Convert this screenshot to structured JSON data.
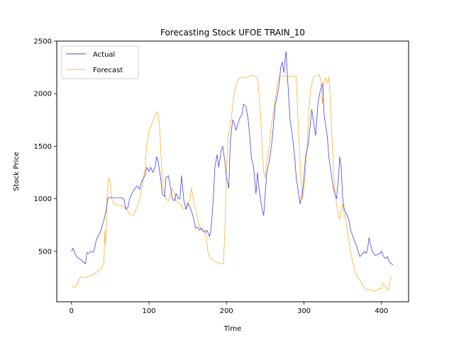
{
  "chart_data": {
    "type": "line",
    "title": "Forecasting Stock UFOE TRAIN_10",
    "xlabel": "Time",
    "ylabel": "Stock Price",
    "xlim": [
      -19,
      435
    ],
    "ylim": [
      20,
      2500
    ],
    "xticks": [
      0,
      100,
      200,
      300,
      400
    ],
    "yticks": [
      500,
      1000,
      1500,
      2000,
      2500
    ],
    "grid": false,
    "legend_position": "top-left",
    "series": [
      {
        "name": "Actual",
        "color": "#4444dd",
        "points": [
          [
            0,
            500
          ],
          [
            2,
            530
          ],
          [
            5,
            470
          ],
          [
            8,
            440
          ],
          [
            12,
            420
          ],
          [
            15,
            400
          ],
          [
            18,
            380
          ],
          [
            20,
            490
          ],
          [
            22,
            480
          ],
          [
            25,
            500
          ],
          [
            28,
            490
          ],
          [
            30,
            530
          ],
          [
            32,
            610
          ],
          [
            35,
            650
          ],
          [
            38,
            700
          ],
          [
            40,
            750
          ],
          [
            42,
            800
          ],
          [
            45,
            900
          ],
          [
            47,
            1010
          ],
          [
            50,
            1010
          ],
          [
            55,
            1010
          ],
          [
            60,
            1010
          ],
          [
            65,
            1010
          ],
          [
            68,
            990
          ],
          [
            70,
            900
          ],
          [
            73,
            920
          ],
          [
            75,
            1000
          ],
          [
            78,
            1050
          ],
          [
            82,
            1100
          ],
          [
            85,
            1120
          ],
          [
            88,
            1090
          ],
          [
            90,
            1150
          ],
          [
            93,
            1200
          ],
          [
            95,
            1220
          ],
          [
            97,
            1300
          ],
          [
            100,
            1260
          ],
          [
            102,
            1300
          ],
          [
            105,
            1250
          ],
          [
            108,
            1300
          ],
          [
            110,
            1400
          ],
          [
            112,
            1350
          ],
          [
            115,
            1200
          ],
          [
            117,
            1050
          ],
          [
            120,
            1020
          ],
          [
            122,
            1200
          ],
          [
            125,
            1220
          ],
          [
            128,
            1100
          ],
          [
            130,
            1000
          ],
          [
            133,
            980
          ],
          [
            135,
            1050
          ],
          [
            138,
            1000
          ],
          [
            140,
            1000
          ],
          [
            142,
            1220
          ],
          [
            145,
            980
          ],
          [
            148,
            900
          ],
          [
            150,
            960
          ],
          [
            153,
            920
          ],
          [
            155,
            880
          ],
          [
            158,
            800
          ],
          [
            160,
            720
          ],
          [
            163,
            730
          ],
          [
            165,
            700
          ],
          [
            168,
            720
          ],
          [
            170,
            690
          ],
          [
            172,
            680
          ],
          [
            175,
            700
          ],
          [
            178,
            640
          ],
          [
            180,
            700
          ],
          [
            183,
            1000
          ],
          [
            185,
            1300
          ],
          [
            188,
            1420
          ],
          [
            190,
            1300
          ],
          [
            193,
            1450
          ],
          [
            195,
            1500
          ],
          [
            198,
            1350
          ],
          [
            200,
            1200
          ],
          [
            203,
            1100
          ],
          [
            205,
            1550
          ],
          [
            208,
            1750
          ],
          [
            210,
            1720
          ],
          [
            212,
            1650
          ],
          [
            215,
            1720
          ],
          [
            218,
            1780
          ],
          [
            220,
            1800
          ],
          [
            222,
            1900
          ],
          [
            225,
            1880
          ],
          [
            228,
            1750
          ],
          [
            230,
            1600
          ],
          [
            232,
            1400
          ],
          [
            235,
            1300
          ],
          [
            238,
            1050
          ],
          [
            240,
            1250
          ],
          [
            242,
            1100
          ],
          [
            244,
            1000
          ],
          [
            246,
            900
          ],
          [
            248,
            840
          ],
          [
            250,
            1050
          ],
          [
            252,
            1250
          ],
          [
            255,
            1350
          ],
          [
            258,
            1500
          ],
          [
            260,
            1650
          ],
          [
            263,
            1900
          ],
          [
            266,
            2000
          ],
          [
            268,
            2100
          ],
          [
            270,
            2250
          ],
          [
            272,
            2300
          ],
          [
            274,
            2200
          ],
          [
            276,
            2350
          ],
          [
            277,
            2400
          ],
          [
            278,
            2250
          ],
          [
            280,
            2000
          ],
          [
            282,
            1750
          ],
          [
            285,
            1600
          ],
          [
            288,
            1400
          ],
          [
            290,
            1200
          ],
          [
            293,
            1050
          ],
          [
            295,
            950
          ],
          [
            298,
            1050
          ],
          [
            300,
            1200
          ],
          [
            302,
            1400
          ],
          [
            305,
            1500
          ],
          [
            308,
            1700
          ],
          [
            310,
            1850
          ],
          [
            312,
            1750
          ],
          [
            315,
            1600
          ],
          [
            318,
            1900
          ],
          [
            320,
            2000
          ],
          [
            322,
            2050
          ],
          [
            324,
            2100
          ],
          [
            326,
            1800
          ],
          [
            328,
            1700
          ],
          [
            330,
            1600
          ],
          [
            332,
            1400
          ],
          [
            335,
            1250
          ],
          [
            338,
            1100
          ],
          [
            340,
            1050
          ],
          [
            342,
            1000
          ],
          [
            345,
            1250
          ],
          [
            346,
            1400
          ],
          [
            348,
            1300
          ],
          [
            350,
            1000
          ],
          [
            352,
            900
          ],
          [
            355,
            850
          ],
          [
            358,
            800
          ],
          [
            360,
            700
          ],
          [
            363,
            650
          ],
          [
            365,
            600
          ],
          [
            368,
            550
          ],
          [
            370,
            500
          ],
          [
            372,
            450
          ],
          [
            375,
            470
          ],
          [
            378,
            500
          ],
          [
            380,
            480
          ],
          [
            382,
            520
          ],
          [
            384,
            630
          ],
          [
            386,
            560
          ],
          [
            388,
            500
          ],
          [
            390,
            480
          ],
          [
            392,
            460
          ],
          [
            395,
            470
          ],
          [
            398,
            480
          ],
          [
            400,
            500
          ],
          [
            402,
            460
          ],
          [
            405,
            430
          ],
          [
            408,
            450
          ],
          [
            410,
            400
          ],
          [
            413,
            380
          ],
          [
            415,
            370
          ]
        ]
      },
      {
        "name": "Forecast",
        "color": "#ffb030",
        "points": [
          [
            0,
            170
          ],
          [
            3,
            160
          ],
          [
            6,
            165
          ],
          [
            8,
            200
          ],
          [
            10,
            240
          ],
          [
            12,
            260
          ],
          [
            15,
            250
          ],
          [
            18,
            250
          ],
          [
            22,
            260
          ],
          [
            28,
            280
          ],
          [
            32,
            300
          ],
          [
            36,
            320
          ],
          [
            40,
            360
          ],
          [
            42,
            400
          ],
          [
            43,
            700
          ],
          [
            44,
            560
          ],
          [
            45,
            750
          ],
          [
            46,
            1050
          ],
          [
            48,
            1200
          ],
          [
            50,
            1150
          ],
          [
            52,
            1000
          ],
          [
            55,
            950
          ],
          [
            60,
            940
          ],
          [
            65,
            930
          ],
          [
            70,
            920
          ],
          [
            75,
            850
          ],
          [
            80,
            840
          ],
          [
            85,
            930
          ],
          [
            88,
            1000
          ],
          [
            92,
            1150
          ],
          [
            95,
            1300
          ],
          [
            97,
            1500
          ],
          [
            100,
            1650
          ],
          [
            103,
            1700
          ],
          [
            106,
            1760
          ],
          [
            108,
            1800
          ],
          [
            110,
            1830
          ],
          [
            112,
            1800
          ],
          [
            114,
            1650
          ],
          [
            116,
            1350
          ],
          [
            118,
            1100
          ],
          [
            120,
            1050
          ],
          [
            122,
            1000
          ],
          [
            125,
            980
          ],
          [
            128,
            1050
          ],
          [
            130,
            1100
          ],
          [
            133,
            1050
          ],
          [
            135,
            980
          ],
          [
            140,
            950
          ],
          [
            145,
            900
          ],
          [
            150,
            930
          ],
          [
            153,
            1000
          ],
          [
            155,
            1100
          ],
          [
            157,
            1000
          ],
          [
            158,
            950
          ],
          [
            160,
            900
          ],
          [
            163,
            800
          ],
          [
            165,
            750
          ],
          [
            168,
            700
          ],
          [
            170,
            690
          ],
          [
            172,
            700
          ],
          [
            174,
            650
          ],
          [
            176,
            500
          ],
          [
            178,
            450
          ],
          [
            182,
            420
          ],
          [
            186,
            400
          ],
          [
            190,
            390
          ],
          [
            194,
            380
          ],
          [
            196,
            380
          ],
          [
            198,
            700
          ],
          [
            200,
            1300
          ],
          [
            202,
            1600
          ],
          [
            204,
            1650
          ],
          [
            206,
            1750
          ],
          [
            208,
            1900
          ],
          [
            210,
            2000
          ],
          [
            212,
            2080
          ],
          [
            215,
            2130
          ],
          [
            218,
            2150
          ],
          [
            222,
            2160
          ],
          [
            225,
            2150
          ],
          [
            230,
            2170
          ],
          [
            235,
            2170
          ],
          [
            238,
            2160
          ],
          [
            240,
            2150
          ],
          [
            242,
            2000
          ],
          [
            244,
            1800
          ],
          [
            246,
            1500
          ],
          [
            248,
            1250
          ],
          [
            250,
            1200
          ],
          [
            252,
            1350
          ],
          [
            255,
            1500
          ],
          [
            258,
            1700
          ],
          [
            260,
            1800
          ],
          [
            262,
            1900
          ],
          [
            264,
            2000
          ],
          [
            266,
            2100
          ],
          [
            268,
            2150
          ],
          [
            270,
            2170
          ],
          [
            274,
            2170
          ],
          [
            280,
            2160
          ],
          [
            286,
            2170
          ],
          [
            290,
            2160
          ],
          [
            292,
            1800
          ],
          [
            294,
            1500
          ],
          [
            296,
            1200
          ],
          [
            298,
            1000
          ],
          [
            300,
            1100
          ],
          [
            302,
            1250
          ],
          [
            304,
            1500
          ],
          [
            306,
            1800
          ],
          [
            308,
            2000
          ],
          [
            310,
            2100
          ],
          [
            312,
            2150
          ],
          [
            315,
            2170
          ],
          [
            318,
            2170
          ],
          [
            320,
            2180
          ],
          [
            322,
            2100
          ],
          [
            324,
            1900
          ],
          [
            326,
            2100
          ],
          [
            328,
            2150
          ],
          [
            330,
            2100
          ],
          [
            332,
            2160
          ],
          [
            334,
            1950
          ],
          [
            336,
            1600
          ],
          [
            338,
            1300
          ],
          [
            340,
            1050
          ],
          [
            342,
            950
          ],
          [
            344,
            850
          ],
          [
            346,
            800
          ],
          [
            348,
            900
          ],
          [
            350,
            950
          ],
          [
            352,
            850
          ],
          [
            354,
            800
          ],
          [
            356,
            700
          ],
          [
            358,
            600
          ],
          [
            360,
            500
          ],
          [
            363,
            400
          ],
          [
            366,
            300
          ],
          [
            370,
            250
          ],
          [
            374,
            200
          ],
          [
            378,
            150
          ],
          [
            382,
            130
          ],
          [
            386,
            140
          ],
          [
            390,
            120
          ],
          [
            394,
            130
          ],
          [
            398,
            150
          ],
          [
            400,
            140
          ],
          [
            402,
            200
          ],
          [
            404,
            180
          ],
          [
            406,
            150
          ],
          [
            408,
            130
          ],
          [
            410,
            180
          ],
          [
            412,
            250
          ],
          [
            414,
            260
          ]
        ]
      }
    ]
  }
}
